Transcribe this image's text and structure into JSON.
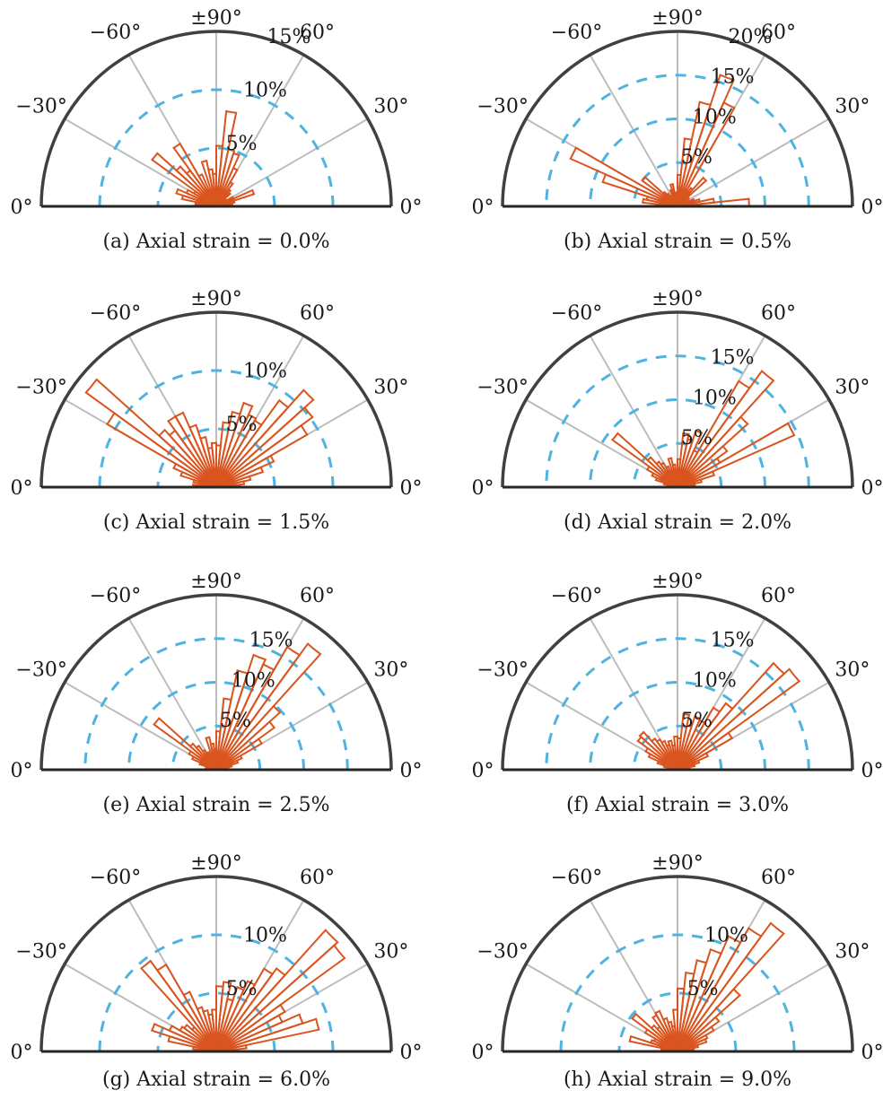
{
  "chart_data": [
    {
      "type": "polar-histogram",
      "caption": "(a) Axial strain = 0.0%",
      "angle_ticks": [
        "0°",
        "30°",
        "60°",
        "±90°",
        "−60°",
        "−30°",
        "0°"
      ],
      "radial_ticks": [
        5,
        10,
        15
      ],
      "radial_tick_labels": [
        "5%",
        "10%",
        "15%"
      ],
      "rmax": 15,
      "bin_width_deg": 6,
      "bins_deg": [
        -87,
        -81,
        -75,
        -69,
        -63,
        -57,
        -51,
        -45,
        -39,
        -33,
        -27,
        -21,
        -15,
        -9,
        -3,
        3,
        9,
        15,
        21,
        27,
        33,
        39,
        45,
        51,
        57,
        63,
        69,
        75,
        81,
        87
      ],
      "values": [
        1.2,
        1.8,
        3.0,
        3.6,
        2.8,
        2.2,
        6.8,
        4.6,
        3.8,
        6.2,
        3.0,
        1.5,
        4.0,
        3.2,
        2.8,
        5.2,
        8.2,
        5.0,
        4.8,
        3.6,
        2.4,
        1.8,
        1.6,
        1.0,
        0.8,
        1.6,
        3.4,
        1.6,
        1.4,
        0.9
      ]
    },
    {
      "type": "polar-histogram",
      "caption": "(b) Axial strain = 0.5%",
      "angle_ticks": [
        "0°",
        "30°",
        "60°",
        "±90°",
        "−60°",
        "−30°",
        "0°"
      ],
      "radial_ticks": [
        5,
        10,
        15,
        20
      ],
      "radial_tick_labels": [
        "5%",
        "10%",
        "15%",
        "20%"
      ],
      "rmax": 20,
      "bin_width_deg": 6,
      "bins_deg": [
        -87,
        -81,
        -75,
        -69,
        -63,
        -57,
        -51,
        -45,
        -39,
        -33,
        -27,
        -21,
        -15,
        -9,
        -3,
        3,
        9,
        15,
        21,
        27,
        33,
        39,
        45,
        51,
        57,
        63,
        69,
        75,
        81,
        87
      ],
      "values": [
        2.0,
        4.0,
        3.6,
        9.0,
        13.4,
        2.0,
        5.0,
        2.2,
        1.8,
        1.2,
        1.4,
        2.0,
        2.6,
        1.6,
        1.6,
        3.6,
        7.8,
        12.2,
        15.8,
        13.0,
        2.0,
        2.6,
        4.4,
        1.6,
        1.2,
        1.4,
        2.0,
        2.6,
        4.2,
        8.2
      ]
    },
    {
      "type": "polar-histogram",
      "caption": "(c) Axial strain = 1.5%",
      "angle_ticks": [
        "0°",
        "30°",
        "60°",
        "±90°",
        "−60°",
        "−30°",
        "0°"
      ],
      "radial_ticks": [
        5,
        10
      ],
      "radial_tick_labels": [
        "5%",
        "10%"
      ],
      "rmax": 15,
      "bin_width_deg": 6,
      "bins_deg": [
        -87,
        -81,
        -75,
        -69,
        -63,
        -57,
        -51,
        -45,
        -39,
        -33,
        -27,
        -21,
        -15,
        -9,
        -3,
        3,
        9,
        15,
        21,
        27,
        33,
        39,
        45,
        51,
        57,
        63,
        69,
        75,
        81,
        87
      ],
      "values": [
        2.0,
        1.2,
        2.0,
        3.2,
        4.0,
        10.8,
        13.8,
        6.6,
        6.0,
        7.0,
        7.0,
        5.6,
        4.4,
        3.4,
        3.8,
        3.6,
        5.6,
        6.6,
        7.6,
        6.8,
        6.6,
        9.2,
        11.2,
        10.2,
        9.0,
        5.4,
        4.2,
        3.0,
        2.4,
        2.0
      ]
    },
    {
      "type": "polar-histogram",
      "caption": "(d) Axial strain = 2.0%",
      "angle_ticks": [
        "0°",
        "30°",
        "60°",
        "±90°",
        "−60°",
        "−30°",
        "0°"
      ],
      "radial_ticks": [
        5,
        10,
        15
      ],
      "radial_tick_labels": [
        "5%",
        "10%",
        "15%"
      ],
      "rmax": 20,
      "bin_width_deg": 6,
      "bins_deg": [
        -87,
        -81,
        -75,
        -69,
        -63,
        -57,
        -51,
        -45,
        -39,
        -33,
        -27,
        -21,
        -15,
        -9,
        -3,
        3,
        9,
        15,
        21,
        27,
        33,
        39,
        45,
        51,
        57,
        63,
        69,
        75,
        81,
        87
      ],
      "values": [
        0.8,
        1.0,
        1.6,
        2.6,
        3.2,
        4.0,
        9.2,
        4.6,
        3.6,
        3.2,
        2.6,
        2.0,
        3.4,
        2.6,
        2.0,
        3.2,
        6.2,
        5.6,
        6.8,
        4.6,
        14.0,
        16.4,
        10.8,
        7.0,
        5.6,
        14.6,
        4.4,
        2.8,
        2.0,
        1.4
      ]
    },
    {
      "type": "polar-histogram",
      "caption": "(e) Axial strain = 2.5%",
      "angle_ticks": [
        "0°",
        "30°",
        "60°",
        "±90°",
        "−60°",
        "−30°",
        "0°"
      ],
      "radial_ticks": [
        5,
        10,
        15
      ],
      "radial_tick_labels": [
        "5%",
        "10%",
        "15%"
      ],
      "rmax": 20,
      "bin_width_deg": 6,
      "bins_deg": [
        -87,
        -81,
        -75,
        -69,
        -63,
        -57,
        -51,
        -45,
        -39,
        -33,
        -27,
        -21,
        -15,
        -9,
        -3,
        3,
        9,
        15,
        21,
        27,
        33,
        39,
        45,
        51,
        57,
        63,
        69,
        75,
        81,
        87
      ],
      "values": [
        0.6,
        0.8,
        1.2,
        2.0,
        3.0,
        3.6,
        8.8,
        4.0,
        3.4,
        2.6,
        2.2,
        2.0,
        3.8,
        3.0,
        2.4,
        4.4,
        8.2,
        11.6,
        13.8,
        13.2,
        16.2,
        17.8,
        9.8,
        8.2,
        6.0,
        3.2,
        2.6,
        1.8,
        1.4,
        1.0
      ]
    },
    {
      "type": "polar-histogram",
      "caption": "(f) Axial strain = 3.0%",
      "angle_ticks": [
        "0°",
        "30°",
        "60°",
        "±90°",
        "−60°",
        "−30°",
        "0°"
      ],
      "radial_ticks": [
        5,
        10,
        15
      ],
      "radial_tick_labels": [
        "5%",
        "10%",
        "15%"
      ],
      "rmax": 20,
      "bin_width_deg": 6,
      "bins_deg": [
        -87,
        -81,
        -75,
        -69,
        -63,
        -57,
        -51,
        -45,
        -39,
        -33,
        -27,
        -21,
        -15,
        -9,
        -3,
        3,
        9,
        15,
        21,
        27,
        33,
        39,
        45,
        51,
        57,
        63,
        69,
        75,
        81,
        87
      ],
      "values": [
        0.8,
        1.0,
        1.6,
        2.4,
        3.6,
        4.2,
        5.6,
        5.8,
        4.4,
        4.0,
        3.6,
        3.0,
        3.4,
        2.8,
        3.8,
        3.6,
        6.4,
        5.2,
        6.4,
        6.2,
        8.2,
        9.4,
        16.4,
        17.2,
        7.2,
        3.8,
        2.6,
        2.0,
        1.4,
        1.0
      ]
    },
    {
      "type": "polar-histogram",
      "caption": "(g) Axial strain = 6.0%",
      "angle_ticks": [
        "0°",
        "30°",
        "60°",
        "±90°",
        "−60°",
        "−30°",
        "0°"
      ],
      "radial_ticks": [
        5,
        10
      ],
      "radial_tick_labels": [
        "5%",
        "10%"
      ],
      "rmax": 15,
      "bin_width_deg": 6,
      "bins_deg": [
        -87,
        -81,
        -75,
        -69,
        -63,
        -57,
        -51,
        -45,
        -39,
        -33,
        -27,
        -21,
        -15,
        -9,
        -3,
        3,
        9,
        15,
        21,
        27,
        33,
        39,
        45,
        51,
        57,
        63,
        69,
        75,
        81,
        87
      ],
      "values": [
        1.2,
        2.0,
        4.2,
        5.8,
        4.4,
        3.6,
        3.4,
        2.8,
        9.6,
        8.6,
        5.6,
        4.0,
        3.6,
        3.2,
        3.6,
        5.6,
        6.0,
        4.6,
        5.8,
        6.6,
        8.2,
        8.8,
        14.0,
        13.6,
        6.8,
        6.2,
        7.8,
        9.0,
        2.6,
        1.8
      ]
    },
    {
      "type": "polar-histogram",
      "caption": "(h) Axial strain = 9.0%",
      "angle_ticks": [
        "0°",
        "30°",
        "60°",
        "±90°",
        "−60°",
        "−30°",
        "0°"
      ],
      "radial_ticks": [
        5,
        10
      ],
      "radial_tick_labels": [
        "5%",
        "10%"
      ],
      "rmax": 15,
      "bin_width_deg": 6,
      "bins_deg": [
        -87,
        -81,
        -75,
        -69,
        -63,
        -57,
        -51,
        -45,
        -39,
        -33,
        -27,
        -21,
        -15,
        -9,
        -3,
        3,
        9,
        15,
        21,
        27,
        33,
        39,
        45,
        51,
        57,
        63,
        69,
        75,
        81,
        87
      ],
      "values": [
        1.0,
        1.4,
        4.2,
        2.4,
        2.2,
        3.2,
        4.8,
        3.0,
        2.6,
        3.6,
        3.8,
        3.0,
        2.6,
        2.2,
        3.6,
        5.4,
        6.8,
        8.0,
        9.2,
        10.8,
        12.2,
        13.6,
        7.2,
        4.4,
        3.6,
        2.8,
        2.6,
        1.8,
        1.4,
        1.0
      ]
    }
  ]
}
